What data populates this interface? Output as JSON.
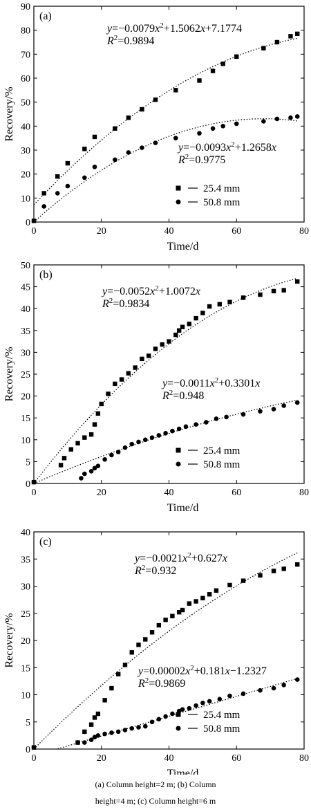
{
  "chart_data": [
    {
      "type": "scatter",
      "panel_label": "(a)",
      "xlabel": "Time/d",
      "ylabel": "Recovery/%",
      "xlim": [
        0,
        80
      ],
      "ylim": [
        0,
        90
      ],
      "xticks": [
        0,
        20,
        40,
        60,
        80
      ],
      "yticks": [
        0,
        10,
        20,
        30,
        40,
        50,
        60,
        70,
        80,
        90
      ],
      "legend_position": "bottom-right",
      "series": [
        {
          "name": "25.4 mm",
          "marker": "square",
          "x": [
            0,
            3,
            7,
            10,
            15,
            18,
            24,
            28,
            32,
            36,
            42,
            49,
            53,
            56,
            60,
            68,
            72,
            76,
            78
          ],
          "y": [
            0.5,
            12,
            19,
            24.5,
            30.5,
            35.5,
            39,
            43.5,
            47,
            51,
            55,
            59,
            63,
            66,
            69,
            72.5,
            75,
            77.5,
            78.5
          ],
          "fit": {
            "equation": "y=−0.0079x²+1.5062x+7.1774",
            "r2": "R²=0.9894",
            "coef": [
              -0.0079,
              1.5062,
              7.1774
            ]
          }
        },
        {
          "name": "50.8 mm",
          "marker": "circle",
          "x": [
            0,
            3,
            7,
            10,
            15,
            18,
            24,
            28,
            32,
            36,
            42,
            49,
            53,
            56,
            60,
            68,
            72,
            76,
            78
          ],
          "y": [
            0.5,
            6.5,
            12,
            15,
            18.5,
            23,
            26,
            29,
            31,
            33,
            35,
            37,
            39,
            40,
            41,
            42,
            43,
            43.5,
            44
          ],
          "fit": {
            "equation": "y=−0.0093x²+1.2658x",
            "r2": "R²=0.9775",
            "coef": [
              -0.0093,
              1.2658,
              0
            ]
          }
        }
      ]
    },
    {
      "type": "scatter",
      "panel_label": "(b)",
      "xlabel": "Time/d",
      "ylabel": "Recovery/%",
      "xlim": [
        0,
        80
      ],
      "ylim": [
        0,
        50
      ],
      "xticks": [
        0,
        20,
        40,
        60,
        80
      ],
      "yticks": [
        0,
        5,
        10,
        15,
        20,
        25,
        30,
        35,
        40,
        45,
        50
      ],
      "legend_position": "bottom-right",
      "series": [
        {
          "name": "25.4 mm",
          "marker": "square",
          "x": [
            0,
            8,
            9,
            11,
            13,
            15,
            17,
            18,
            19,
            20,
            22,
            24,
            26,
            28,
            30,
            32,
            34,
            36,
            38,
            40,
            42,
            43,
            44,
            46,
            48,
            50,
            52,
            55,
            58,
            62,
            67,
            71,
            74,
            78
          ],
          "y": [
            0.3,
            4.2,
            5.8,
            7.8,
            9.2,
            10.5,
            11.2,
            13.5,
            16,
            18.2,
            20.5,
            22.8,
            23.8,
            25.2,
            26.5,
            28.5,
            29.2,
            30.8,
            31.8,
            32.5,
            34,
            35,
            35.8,
            36.5,
            37.8,
            39,
            40.5,
            41,
            41.5,
            42.5,
            43.2,
            44,
            44.2,
            46.2
          ],
          "fit": {
            "equation": "y=−0.0052x²+1.0072x",
            "r2": "R²=0.9834",
            "coef": [
              -0.0052,
              1.0072,
              0
            ]
          }
        },
        {
          "name": "50.8 mm",
          "marker": "circle",
          "x": [
            0,
            14,
            15,
            17,
            18,
            19,
            21,
            23,
            25,
            27,
            29,
            31,
            33,
            35,
            37,
            39,
            41,
            43,
            45,
            48,
            51,
            54,
            57,
            62,
            67,
            71,
            74,
            78
          ],
          "y": [
            0.3,
            1.2,
            2.2,
            2.8,
            3.5,
            4,
            5.5,
            6.5,
            7.2,
            8.2,
            9,
            9.5,
            10,
            10.5,
            11,
            11.5,
            12,
            12.5,
            13,
            13.5,
            14,
            14.8,
            15.2,
            15.8,
            16.5,
            17,
            17.8,
            18.5
          ],
          "fit": {
            "equation": "y=−0.0011x²+0.3301x",
            "r2": "R²=0.948",
            "coef": [
              -0.0011,
              0.3301,
              0
            ]
          }
        }
      ]
    },
    {
      "type": "scatter",
      "panel_label": "(c)",
      "xlabel": "Time/d",
      "ylabel": "Recovery/%",
      "xlim": [
        0,
        80
      ],
      "ylim": [
        0,
        40
      ],
      "xticks": [
        0,
        20,
        40,
        60,
        80
      ],
      "yticks": [
        0,
        5,
        10,
        15,
        20,
        25,
        30,
        35,
        40
      ],
      "legend_position": "bottom-right",
      "series": [
        {
          "name": "25.4 mm",
          "marker": "square",
          "x": [
            0,
            13,
            15,
            17,
            18,
            19,
            21,
            23,
            25,
            27,
            29,
            31,
            33,
            35,
            37,
            39,
            41,
            43,
            44,
            46,
            48,
            50,
            52,
            54,
            58,
            62,
            67,
            71,
            74,
            78
          ],
          "y": [
            0.3,
            1.2,
            3.2,
            4.5,
            5.8,
            6.5,
            9,
            11.2,
            13.8,
            15.5,
            17.8,
            19.2,
            20.2,
            21.5,
            22.8,
            23.8,
            24.5,
            25.2,
            25.6,
            26.8,
            27.2,
            27.8,
            28.5,
            29.2,
            30.2,
            31,
            32,
            32.8,
            33.2,
            34
          ],
          "fit": {
            "equation": "y=−0.0021x²+0.627x",
            "r2": "R²=0.932",
            "coef": [
              -0.0021,
              0.627,
              0
            ]
          }
        },
        {
          "name": "50.8 mm",
          "marker": "circle",
          "x": [
            0,
            13,
            15,
            17,
            18,
            19,
            21,
            23,
            25,
            27,
            29,
            31,
            33,
            35,
            37,
            39,
            41,
            43,
            44,
            46,
            48,
            50,
            52,
            55,
            58,
            62,
            67,
            71,
            74,
            78
          ],
          "y": [
            0.3,
            1.2,
            1.2,
            1.7,
            2.2,
            2.5,
            2.8,
            3,
            3.2,
            3.5,
            3.8,
            4,
            4.2,
            5,
            5.5,
            6,
            6.5,
            7,
            7.3,
            7.5,
            8,
            8.5,
            8.8,
            9.2,
            9.8,
            10.2,
            10.8,
            11.2,
            11.8,
            12.8
          ],
          "fit": {
            "equation": "y=0.00002x²+0.181x−1.2327",
            "r2": "R²=0.9869",
            "coef": [
              2e-05,
              0.181,
              -1.2327
            ]
          }
        }
      ]
    }
  ],
  "caption": {
    "line1": "(a)  Column  height=2  m;  (b)  Column",
    "line2": "height=4 m; (c) Column height=6 m"
  }
}
